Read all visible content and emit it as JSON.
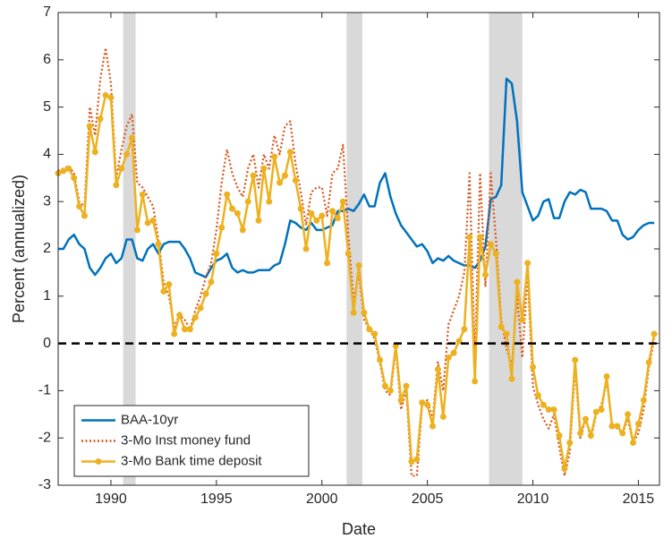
{
  "chart_data": {
    "type": "line",
    "x_label": "Date",
    "y_label": "Percent (annualized)",
    "xlim": [
      1987.5,
      2016
    ],
    "xticks": [
      1990,
      1995,
      2000,
      2005,
      2010,
      2015
    ],
    "ylim": [
      -3,
      7
    ],
    "yticks": [
      -3,
      -2,
      -1,
      0,
      1,
      2,
      3,
      4,
      5,
      6,
      7
    ],
    "reference_line": 0,
    "shaded_periods": [
      [
        1990.58,
        1991.17
      ],
      [
        2001.17,
        2001.92
      ],
      [
        2007.92,
        2009.5
      ]
    ],
    "legend": "lower-left",
    "x": [
      1987.5,
      1987.75,
      1988,
      1988.25,
      1988.5,
      1988.75,
      1989,
      1989.25,
      1989.5,
      1989.75,
      1990,
      1990.25,
      1990.5,
      1990.75,
      1991,
      1991.25,
      1991.5,
      1991.75,
      1992,
      1992.25,
      1992.5,
      1992.75,
      1993,
      1993.25,
      1993.5,
      1993.75,
      1994,
      1994.25,
      1994.5,
      1994.75,
      1995,
      1995.25,
      1995.5,
      1995.75,
      1996,
      1996.25,
      1996.5,
      1996.75,
      1997,
      1997.25,
      1997.5,
      1997.75,
      1998,
      1998.25,
      1998.5,
      1998.75,
      1999,
      1999.25,
      1999.5,
      1999.75,
      2000,
      2000.25,
      2000.5,
      2000.75,
      2001,
      2001.25,
      2001.5,
      2001.75,
      2002,
      2002.25,
      2002.5,
      2002.75,
      2003,
      2003.25,
      2003.5,
      2003.75,
      2004,
      2004.25,
      2004.5,
      2004.75,
      2005,
      2005.25,
      2005.5,
      2005.75,
      2006,
      2006.25,
      2006.5,
      2006.75,
      2007,
      2007.25,
      2007.5,
      2007.75,
      2008,
      2008.25,
      2008.5,
      2008.75,
      2009,
      2009.25,
      2009.5,
      2009.75,
      2010,
      2010.25,
      2010.5,
      2010.75,
      2011,
      2011.25,
      2011.5,
      2011.75,
      2012,
      2012.25,
      2012.5,
      2012.75,
      2013,
      2013.25,
      2013.5,
      2013.75,
      2014,
      2014.25,
      2014.5,
      2014.75,
      2015,
      2015.25,
      2015.5,
      2015.75
    ],
    "series": [
      {
        "name": "BAA-10yr",
        "color": "#0072bd",
        "style": "solid",
        "marker": false,
        "values": [
          2.0,
          2.0,
          2.2,
          2.3,
          2.1,
          2.0,
          1.6,
          1.45,
          1.6,
          1.8,
          1.9,
          1.7,
          1.8,
          2.2,
          2.2,
          1.8,
          1.75,
          2.0,
          2.1,
          1.9,
          2.1,
          2.15,
          2.15,
          2.15,
          2.0,
          1.8,
          1.5,
          1.45,
          1.4,
          1.6,
          1.75,
          1.8,
          1.9,
          1.6,
          1.5,
          1.55,
          1.5,
          1.5,
          1.55,
          1.55,
          1.55,
          1.65,
          1.7,
          2.1,
          2.6,
          2.55,
          2.45,
          2.4,
          2.55,
          2.4,
          2.4,
          2.45,
          2.5,
          2.8,
          2.8,
          2.85,
          2.8,
          2.95,
          3.15,
          2.9,
          2.9,
          3.4,
          3.6,
          3.1,
          2.75,
          2.5,
          2.35,
          2.2,
          2.05,
          2.1,
          1.95,
          1.7,
          1.8,
          1.75,
          1.85,
          1.75,
          1.7,
          1.65,
          1.65,
          1.6,
          1.75,
          2.05,
          3.05,
          3.1,
          3.35,
          5.6,
          5.5,
          4.7,
          3.2,
          2.9,
          2.6,
          2.7,
          3.0,
          3.05,
          2.65,
          2.65,
          3.0,
          3.2,
          3.15,
          3.25,
          3.2,
          2.85,
          2.85,
          2.85,
          2.8,
          2.6,
          2.6,
          2.3,
          2.2,
          2.25,
          2.4,
          2.5,
          2.55,
          2.55
        ]
      },
      {
        "name": "3-Mo Inst money fund",
        "color": "#d95319",
        "style": "dotted",
        "marker": false,
        "values": [
          3.65,
          3.7,
          3.75,
          3.6,
          3.0,
          2.9,
          5.0,
          4.4,
          5.6,
          6.25,
          5.5,
          3.5,
          4.1,
          4.6,
          4.85,
          3.4,
          3.3,
          3.1,
          2.9,
          2.2,
          1.3,
          1.0,
          0.35,
          0.6,
          0.5,
          0.3,
          0.7,
          1.0,
          1.4,
          1.7,
          2.4,
          3.4,
          4.1,
          3.6,
          3.3,
          3.1,
          3.7,
          4.0,
          3.3,
          4.0,
          3.7,
          4.4,
          4.0,
          4.6,
          4.7,
          3.8,
          3.2,
          2.5,
          3.2,
          3.3,
          3.3,
          2.7,
          3.6,
          3.7,
          4.2,
          2.3,
          0.9,
          1.5,
          0.5,
          0.3,
          0.1,
          -0.4,
          -1.0,
          -1.1,
          -0.1,
          -1.4,
          -1.0,
          -2.8,
          -2.8,
          -1.3,
          -1.2,
          -1.6,
          -0.4,
          -1.0,
          0.4,
          0.7,
          1.0,
          1.5,
          3.6,
          -0.3,
          3.6,
          1.2,
          3.6,
          2.2,
          0.5,
          -0.1,
          -0.5,
          1.0,
          -0.3,
          1.5,
          -0.9,
          -1.3,
          -1.6,
          -1.8,
          -1.5,
          -2.2,
          -2.8,
          -2.3,
          -0.5,
          -2.0,
          -1.6,
          -2.0,
          -1.5,
          -1.3,
          -0.8,
          -1.7,
          -1.8,
          -1.9,
          -1.6,
          -2.1,
          -1.9,
          -1.4,
          -0.5,
          0.1
        ]
      },
      {
        "name": "3-Mo Bank time deposit",
        "color": "#edb120",
        "style": "solid",
        "marker": true,
        "values": [
          3.6,
          3.65,
          3.7,
          3.5,
          2.9,
          2.7,
          4.6,
          4.05,
          4.75,
          5.25,
          5.2,
          3.35,
          3.7,
          4.0,
          4.35,
          2.4,
          3.15,
          2.55,
          2.6,
          2.1,
          1.1,
          1.25,
          0.2,
          0.6,
          0.3,
          0.3,
          0.55,
          0.75,
          1.05,
          1.3,
          1.9,
          2.45,
          3.15,
          2.85,
          2.75,
          2.4,
          3.0,
          3.55,
          2.6,
          3.7,
          3.0,
          3.95,
          3.4,
          3.55,
          4.05,
          3.45,
          2.85,
          2.0,
          2.75,
          2.6,
          2.7,
          1.7,
          2.8,
          2.65,
          3.0,
          1.9,
          0.65,
          1.65,
          0.65,
          0.3,
          0.2,
          -0.35,
          -0.9,
          -1.0,
          -0.05,
          -1.2,
          -0.9,
          -2.5,
          -2.45,
          -1.25,
          -1.3,
          -1.75,
          -0.55,
          -1.55,
          -0.3,
          -0.2,
          0.05,
          0.3,
          2.25,
          -0.8,
          2.25,
          1.45,
          2.1,
          1.9,
          0.35,
          0.2,
          -0.75,
          1.3,
          0.5,
          1.7,
          -0.5,
          -1.1,
          -1.3,
          -1.4,
          -1.4,
          -1.95,
          -2.65,
          -2.1,
          -0.35,
          -1.9,
          -1.6,
          -1.95,
          -1.45,
          -1.4,
          -0.7,
          -1.75,
          -1.75,
          -1.9,
          -1.5,
          -2.1,
          -1.7,
          -1.2,
          -0.4,
          0.2
        ]
      }
    ]
  }
}
